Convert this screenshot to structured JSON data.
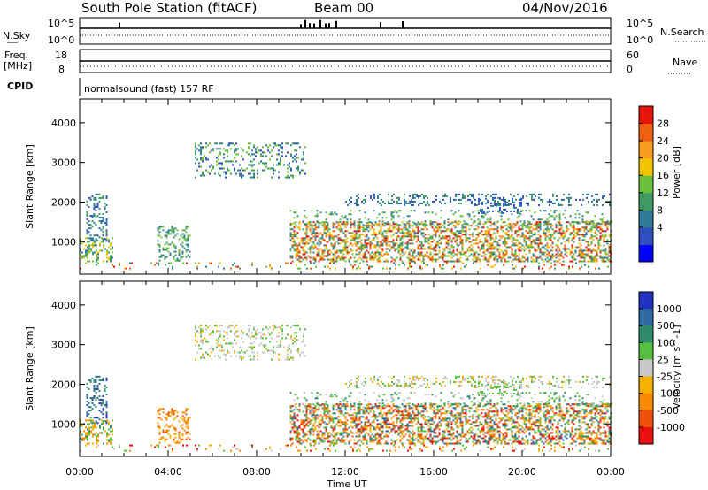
{
  "header": {
    "title": "South Pole Station (fitACF)",
    "beam": "Beam 00",
    "date": "04/Nov/2016"
  },
  "status_panels": {
    "nsky_label": "N.Sky",
    "nsky_ticks": [
      "10^5",
      "10^0"
    ],
    "nsearch_label": "N.Search",
    "nsearch_ticks": [
      "10^5",
      "10^0"
    ],
    "freq_label_1": "Freq.",
    "freq_label_2": "[MHz]",
    "freq_ticks": [
      "18",
      "8"
    ],
    "nave_label": "Nave",
    "nave_ticks": [
      "60",
      "0"
    ],
    "cpid_label": "CPID",
    "cpid_text": "normalsound (fast) 157 RF"
  },
  "chart_data": [
    {
      "type": "heatmap",
      "name": "power-panel",
      "ylabel": "Slant Range [km]",
      "ylim": [
        180,
        4600
      ],
      "yticks": [
        "4000",
        "3000",
        "2000",
        "1000"
      ],
      "colorbar_label": "Power [dB]",
      "colorbar_ticks": [
        "28",
        "24",
        "20",
        "16",
        "12",
        "8",
        "4"
      ],
      "colors": [
        "#0000ff",
        "#2f4fbe",
        "#2e7b97",
        "#3f9b63",
        "#6bbf3a",
        "#f2c400",
        "#f89a1e",
        "#f06010",
        "#e8140b"
      ]
    },
    {
      "type": "heatmap",
      "name": "velocity-panel",
      "ylabel": "Slant Range [km]",
      "ylim": [
        180,
        4600
      ],
      "yticks": [
        "4000",
        "3000",
        "2000",
        "1000"
      ],
      "colorbar_label": "Velocity [m s^-1]",
      "colorbar_ticks": [
        "1000",
        "500",
        "100",
        "25",
        "-25",
        "-100",
        "-500",
        "-1000"
      ],
      "colors": [
        "#2030c0",
        "#2f6aa0",
        "#2e8a6a",
        "#55c040",
        "#c8c8c8",
        "#f7b000",
        "#f78a00",
        "#f0500c",
        "#e81010"
      ]
    }
  ],
  "x_axis": {
    "label": "Time UT",
    "ticks": [
      "00:00",
      "04:00",
      "08:00",
      "12:00",
      "16:00",
      "20:00",
      "00:00"
    ]
  }
}
